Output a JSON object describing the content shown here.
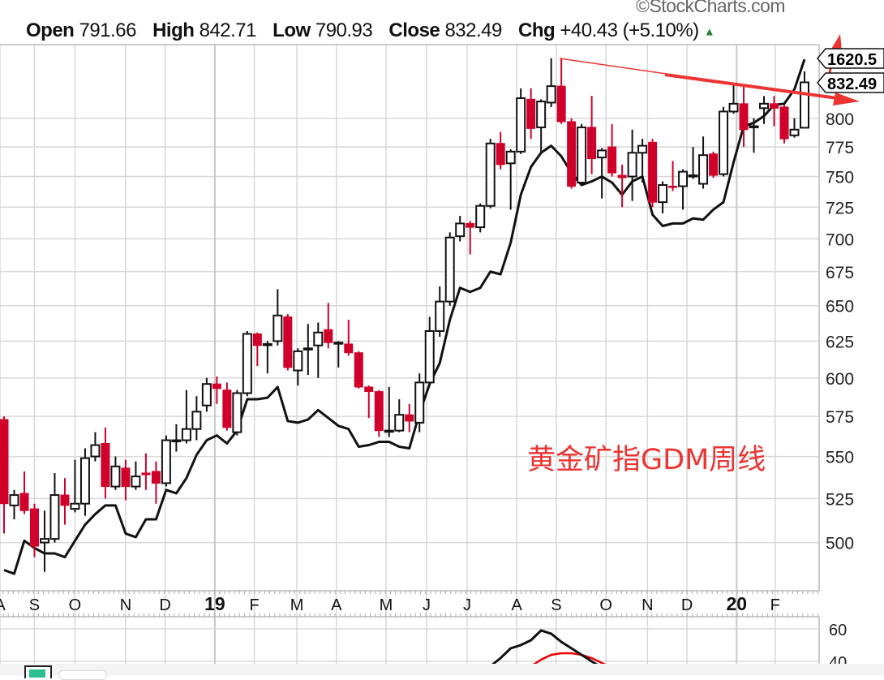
{
  "credit": "©StockCharts.com",
  "header": {
    "open_label": "Open",
    "open_value": "791.66",
    "high_label": "High",
    "high_value": "842.71",
    "low_label": "Low",
    "low_value": "790.93",
    "close_label": "Close",
    "close_value": "832.49",
    "chg_label": "Chg",
    "chg_value": "+40.43 (+5.10%)",
    "chg_icon": "up-triangle-icon"
  },
  "annotation_text": "黄金矿指GDM周线",
  "price_tags": {
    "overlay": "1620.5",
    "close": "832.49"
  },
  "colors": {
    "down": "#d0002b",
    "up": "#ffffff",
    "outline": "#111111",
    "annotation": "#ee3333",
    "grid": "#d8d8d8",
    "up_arrow": "#2e7d32"
  },
  "chart_data": {
    "type": "candlestick",
    "title": "",
    "scale": "log",
    "ylim": [
      474,
      868
    ],
    "yticks": [
      500,
      525,
      550,
      575,
      600,
      625,
      650,
      675,
      700,
      725,
      750,
      775,
      800
    ],
    "xticks": [
      {
        "w": -0.4,
        "label": "A",
        "bold": false
      },
      {
        "w": 3.0,
        "label": "S",
        "bold": false
      },
      {
        "w": 7.0,
        "label": "O",
        "bold": false
      },
      {
        "w": 12.0,
        "label": "N",
        "bold": false
      },
      {
        "w": 15.9,
        "label": "D",
        "bold": false
      },
      {
        "w": 20.8,
        "label": "19",
        "bold": true
      },
      {
        "w": 24.7,
        "label": "F",
        "bold": false
      },
      {
        "w": 28.9,
        "label": "M",
        "bold": false
      },
      {
        "w": 32.8,
        "label": "A",
        "bold": false
      },
      {
        "w": 37.7,
        "label": "M",
        "bold": false
      },
      {
        "w": 41.7,
        "label": "J",
        "bold": false
      },
      {
        "w": 45.7,
        "label": "J",
        "bold": false
      },
      {
        "w": 50.6,
        "label": "A",
        "bold": false
      },
      {
        "w": 54.5,
        "label": "S",
        "bold": false
      },
      {
        "w": 59.4,
        "label": "O",
        "bold": false
      },
      {
        "w": 63.5,
        "label": "N",
        "bold": false
      },
      {
        "w": 67.4,
        "label": "D",
        "bold": false
      },
      {
        "w": 72.3,
        "label": "20",
        "bold": true
      },
      {
        "w": 76.1,
        "label": "F",
        "bold": false
      }
    ],
    "ohlc": [
      [
        573,
        575,
        505,
        522
      ],
      [
        521,
        530,
        513,
        527
      ],
      [
        528,
        541,
        516,
        518
      ],
      [
        519,
        522,
        492,
        498
      ],
      [
        500,
        518,
        484,
        502
      ],
      [
        502,
        540,
        500,
        527
      ],
      [
        527,
        537,
        510,
        521
      ],
      [
        519,
        548,
        517,
        522
      ],
      [
        522,
        555,
        515,
        549
      ],
      [
        550,
        565,
        547,
        557
      ],
      [
        558,
        568,
        525,
        532
      ],
      [
        532,
        550,
        530,
        544
      ],
      [
        543,
        548,
        524,
        532
      ],
      [
        532,
        547,
        530,
        538
      ],
      [
        540,
        552,
        530,
        539
      ],
      [
        541,
        547,
        522,
        534
      ],
      [
        534,
        563,
        532,
        560
      ],
      [
        560,
        570,
        553,
        560
      ],
      [
        560,
        592,
        558,
        567
      ],
      [
        567,
        588,
        560,
        578
      ],
      [
        582,
        600,
        578,
        596
      ],
      [
        596,
        601,
        583,
        593
      ],
      [
        592,
        597,
        566,
        568
      ],
      [
        565,
        592,
        563,
        590
      ],
      [
        590,
        632,
        588,
        630
      ],
      [
        630,
        631,
        608,
        622
      ],
      [
        623,
        625,
        603,
        623
      ],
      [
        625,
        662,
        622,
        643
      ],
      [
        642,
        644,
        605,
        607
      ],
      [
        605,
        620,
        595,
        618
      ],
      [
        620,
        637,
        602,
        620
      ],
      [
        622,
        638,
        600,
        631
      ],
      [
        633,
        652,
        620,
        624
      ],
      [
        624,
        625,
        607,
        624
      ],
      [
        623,
        640,
        615,
        617
      ],
      [
        617,
        618,
        593,
        594
      ],
      [
        594,
        595,
        574,
        591
      ],
      [
        591,
        592,
        562,
        566
      ],
      [
        566,
        594,
        562,
        566
      ],
      [
        566,
        586,
        565,
        576
      ],
      [
        576,
        583,
        565,
        572
      ],
      [
        571,
        603,
        565,
        597
      ],
      [
        597,
        642,
        595,
        632
      ],
      [
        632,
        664,
        628,
        653
      ],
      [
        653,
        705,
        650,
        701
      ],
      [
        702,
        718,
        698,
        712
      ],
      [
        712,
        714,
        688,
        709
      ],
      [
        709,
        728,
        705,
        726
      ],
      [
        726,
        782,
        724,
        778
      ],
      [
        778,
        788,
        756,
        760
      ],
      [
        761,
        773,
        723,
        771
      ],
      [
        771,
        827,
        769,
        818
      ],
      [
        817,
        827,
        782,
        791
      ],
      [
        792,
        817,
        770,
        815
      ],
      [
        814,
        855,
        810,
        829
      ],
      [
        829,
        855,
        795,
        797
      ],
      [
        797,
        800,
        740,
        742
      ],
      [
        745,
        795,
        743,
        792
      ],
      [
        792,
        820,
        752,
        765
      ],
      [
        766,
        774,
        732,
        772
      ],
      [
        775,
        795,
        750,
        753
      ],
      [
        751,
        760,
        725,
        749
      ],
      [
        750,
        790,
        730,
        770
      ],
      [
        770,
        782,
        745,
        776
      ],
      [
        779,
        782,
        725,
        729
      ],
      [
        729,
        746,
        720,
        743
      ],
      [
        742,
        763,
        738,
        741
      ],
      [
        742,
        756,
        723,
        754
      ],
      [
        751,
        775,
        748,
        751
      ],
      [
        744,
        784,
        740,
        768
      ],
      [
        769,
        771,
        749,
        751
      ],
      [
        752,
        810,
        750,
        806
      ],
      [
        806,
        830,
        804,
        813
      ],
      [
        813,
        830,
        775,
        790
      ],
      [
        793,
        800,
        770,
        793
      ],
      [
        809,
        820,
        795,
        813
      ],
      [
        813,
        820,
        793,
        809
      ],
      [
        810,
        812,
        778,
        782
      ],
      [
        785,
        800,
        783,
        790
      ],
      [
        791.66,
        842.71,
        790.93,
        832.49
      ]
    ],
    "overlay_series": {
      "name": "comparison",
      "values": [
        485,
        483,
        501,
        497,
        494,
        494,
        492,
        501,
        510,
        516,
        521,
        521,
        505,
        503,
        513,
        513,
        530,
        528,
        537,
        551,
        560,
        563,
        558,
        566,
        586,
        586,
        587,
        594,
        572,
        571,
        573,
        579,
        574,
        569,
        567,
        556,
        557,
        559,
        559,
        556,
        555,
        577,
        596,
        610,
        640,
        663,
        660,
        663,
        675,
        673,
        697,
        735,
        758,
        770,
        776,
        767,
        753,
        743,
        746,
        750,
        745,
        735,
        746,
        750,
        719,
        710,
        712,
        712,
        716,
        715,
        723,
        729,
        762,
        793,
        796,
        802,
        812,
        813,
        826,
        854
      ]
    },
    "lower_panel": {
      "yticks": [
        60,
        40
      ],
      "ylim": [
        38,
        62
      ],
      "black": [
        [
          48,
          37
        ],
        [
          49,
          42
        ],
        [
          50,
          48
        ],
        [
          51,
          50
        ],
        [
          52,
          53
        ],
        [
          53,
          59
        ],
        [
          54,
          57
        ],
        [
          55,
          52
        ],
        [
          56,
          48
        ],
        [
          57,
          44
        ],
        [
          58,
          40
        ],
        [
          59,
          36
        ]
      ],
      "red": [
        [
          52,
          37
        ],
        [
          53,
          41
        ],
        [
          54,
          44
        ],
        [
          55,
          45
        ],
        [
          56,
          45
        ],
        [
          57,
          44
        ],
        [
          58,
          42
        ],
        [
          59,
          39
        ],
        [
          60,
          36
        ]
      ]
    }
  }
}
